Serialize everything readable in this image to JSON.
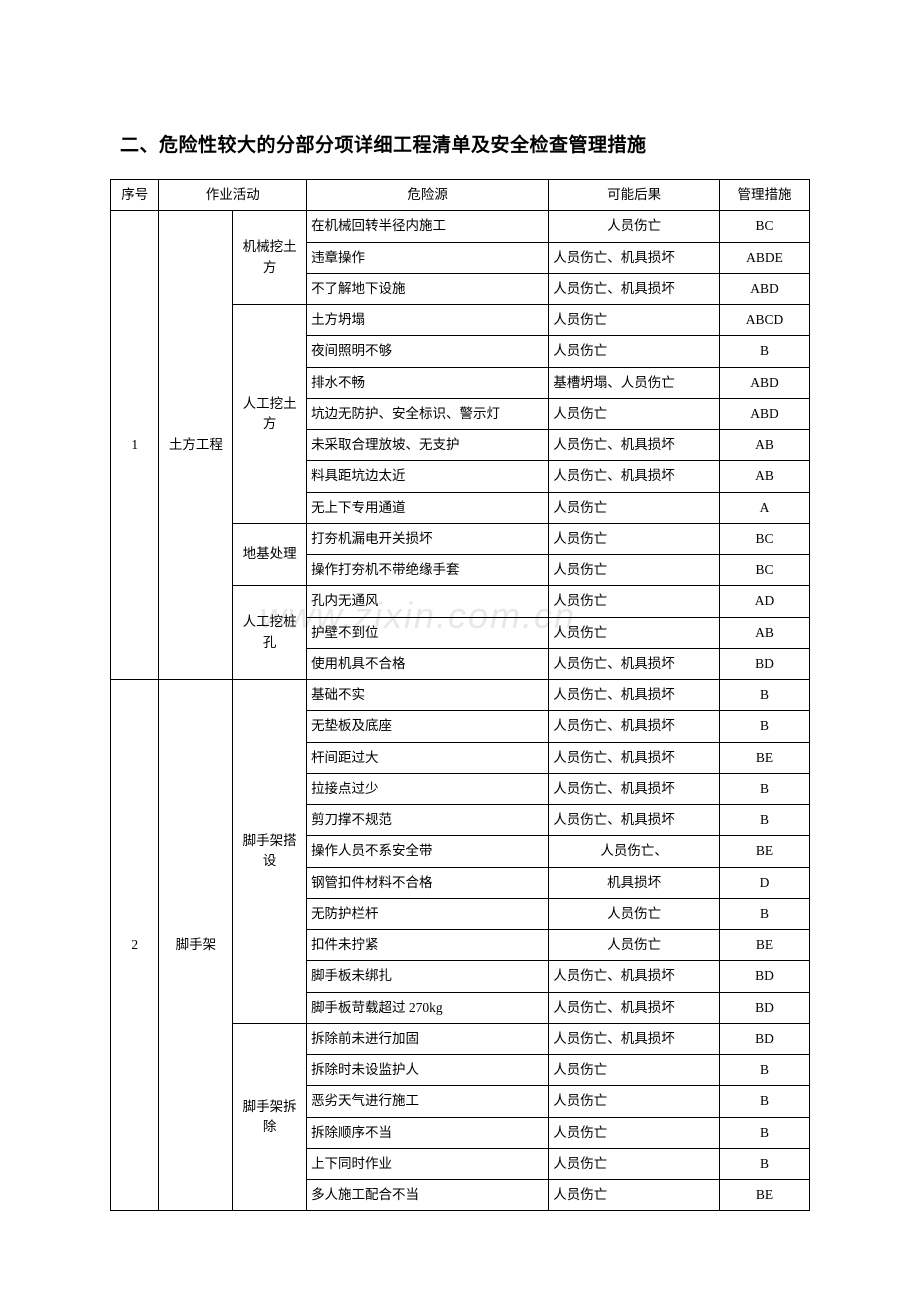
{
  "title": "二、危险性较大的分部分项详细工程清单及安全检查管理措施",
  "headers": {
    "seq": "序号",
    "activity": "作业活动",
    "hazard": "危险源",
    "consequence": "可能后果",
    "measure": "管理措施"
  },
  "watermark": "www.zixin.com.cn",
  "groups": [
    {
      "seq": "1",
      "activity": "土方工程",
      "subgroups": [
        {
          "sub": "机械挖土方",
          "rows": [
            {
              "hazard": "在机械回转半径内施工",
              "cons": "人员伤亡",
              "cons_center": true,
              "meas": "BC"
            },
            {
              "hazard": "违章操作",
              "cons": "人员伤亡、机具损坏",
              "meas": "ABDE"
            },
            {
              "hazard": "不了解地下设施",
              "cons": "人员伤亡、机具损坏",
              "meas": "ABD"
            }
          ]
        },
        {
          "sub": "人工挖土 方",
          "rows": [
            {
              "hazard": "土方坍塌",
              "cons": "人员伤亡",
              "meas": "ABCD"
            },
            {
              "hazard": "夜间照明不够",
              "cons": "人员伤亡",
              "meas": "B"
            },
            {
              "hazard": "排水不畅",
              "cons": "基槽坍塌、人员伤亡",
              "meas": "ABD"
            },
            {
              "hazard": "坑边无防护、安全标识、警示灯",
              "cons": "人员伤亡",
              "meas": "ABD"
            },
            {
              "hazard": "未采取合理放坡、无支护",
              "cons": "人员伤亡、机具损坏",
              "meas": "AB"
            },
            {
              "hazard": "料具距坑边太近",
              "cons": "人员伤亡、机具损坏",
              "meas": "AB"
            },
            {
              "hazard": "无上下专用通道",
              "cons": "人员伤亡",
              "meas": "A"
            }
          ]
        },
        {
          "sub": "地基处理",
          "rows": [
            {
              "hazard": "打夯机漏电开关损坏",
              "cons": "人员伤亡",
              "meas": "BC"
            },
            {
              "hazard": "操作打夯机不带绝缘手套",
              "cons": "人员伤亡",
              "meas": "BC"
            }
          ]
        },
        {
          "sub": "人工挖桩 孔",
          "rows": [
            {
              "hazard": "孔内无通风",
              "cons": "人员伤亡",
              "meas": "AD"
            },
            {
              "hazard": "护壁不到位",
              "cons": "人员伤亡",
              "meas": "AB"
            },
            {
              "hazard": "使用机具不合格",
              "cons": "人员伤亡、机具损坏",
              "meas": "BD"
            }
          ]
        }
      ]
    },
    {
      "seq": "2",
      "activity": "脚手架",
      "subgroups": [
        {
          "sub": "脚手架搭 设",
          "rows": [
            {
              "hazard": "基础不实",
              "cons": "人员伤亡、机具损坏",
              "meas": "B"
            },
            {
              "hazard": "无垫板及底座",
              "cons": "人员伤亡、机具损坏",
              "meas": "B"
            },
            {
              "hazard": "杆间距过大",
              "cons": "人员伤亡、机具损坏",
              "meas": "BE"
            },
            {
              "hazard": "拉接点过少",
              "cons": "人员伤亡、机具损坏",
              "meas": "B"
            },
            {
              "hazard": "剪刀撑不规范",
              "cons": "人员伤亡、机具损坏",
              "meas": "B"
            },
            {
              "hazard": "操作人员不系安全带",
              "cons": "人员伤亡、",
              "cons_center": true,
              "meas": "BE"
            },
            {
              "hazard": "钢管扣件材料不合格",
              "cons": "机具损坏",
              "cons_center": true,
              "meas": "D"
            },
            {
              "hazard": "无防护栏杆",
              "cons": "人员伤亡",
              "cons_center": true,
              "meas": "B"
            },
            {
              "hazard": "扣件未拧紧",
              "cons": "人员伤亡",
              "cons_center": true,
              "meas": "BE"
            },
            {
              "hazard": "脚手板未绑扎",
              "cons": "人员伤亡、机具损坏",
              "meas": "BD"
            },
            {
              "hazard": "脚手板苛载超过 270kg",
              "cons": "人员伤亡、机具损坏",
              "meas": "BD"
            }
          ]
        },
        {
          "sub": "脚手架拆 除",
          "rows": [
            {
              "hazard": "拆除前未进行加固",
              "cons": "人员伤亡、机具损坏",
              "meas": "BD"
            },
            {
              "hazard": "拆除时未设监护人",
              "cons": "人员伤亡",
              "meas": "B"
            },
            {
              "hazard": "恶劣天气进行施工",
              "cons": "人员伤亡",
              "meas": "B"
            },
            {
              "hazard": "拆除顺序不当",
              "cons": "人员伤亡",
              "meas": "B"
            },
            {
              "hazard": "上下同时作业",
              "cons": "人员伤亡",
              "meas": "B"
            },
            {
              "hazard": "多人施工配合不当",
              "cons": "人员伤亡",
              "meas": "BE"
            }
          ]
        }
      ]
    }
  ]
}
